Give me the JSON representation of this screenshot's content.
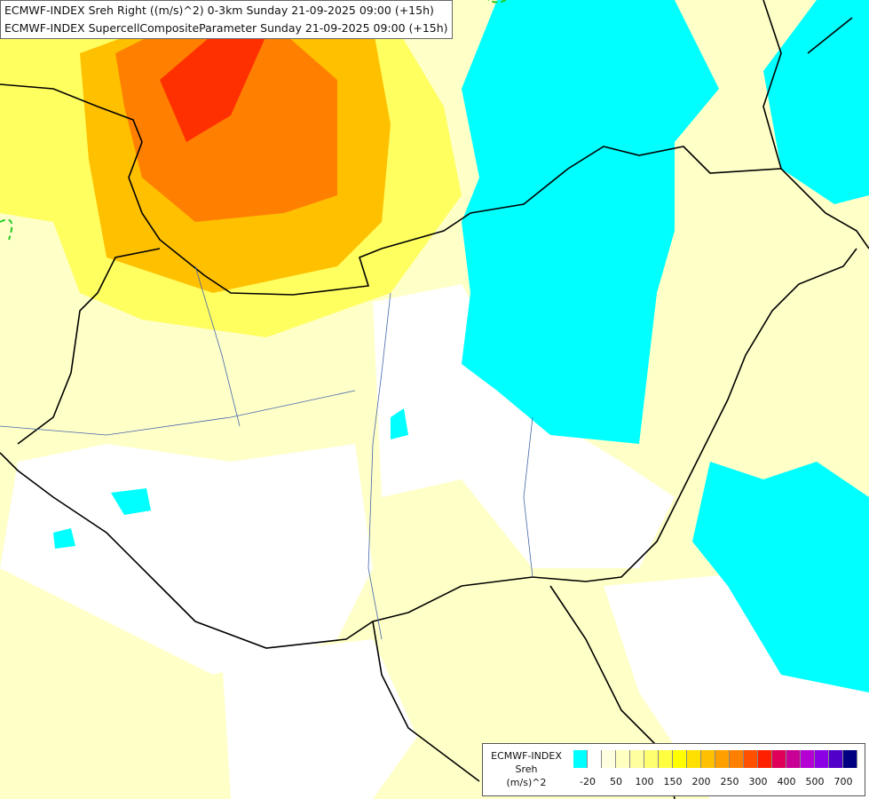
{
  "header": {
    "lines": [
      "ECMWF-INDEX Sreh Right ((m/s)^2) 0-3km Sunday 21-09-2025 09:00 (+15h)",
      "ECMWF-INDEX SupercellCompositeParameter Sunday 21-09-2025 09:00 (+15h)"
    ]
  },
  "legend": {
    "title": [
      "ECMWF-INDEX",
      "Sreh",
      "(m/s)^2"
    ],
    "colors": [
      "#00ffff",
      "#ffffff",
      "#ffffe0",
      "#ffffc0",
      "#ffffa0",
      "#ffff70",
      "#ffff40",
      "#ffff00",
      "#ffe000",
      "#ffc000",
      "#ffa000",
      "#ff8000",
      "#ff5000",
      "#ff2000",
      "#e0005a",
      "#c80096",
      "#b400d2",
      "#8c00e6",
      "#5000c8",
      "#000080"
    ],
    "ticks": [
      -20,
      50,
      100,
      150,
      200,
      250,
      300,
      400,
      500,
      700
    ]
  }
}
